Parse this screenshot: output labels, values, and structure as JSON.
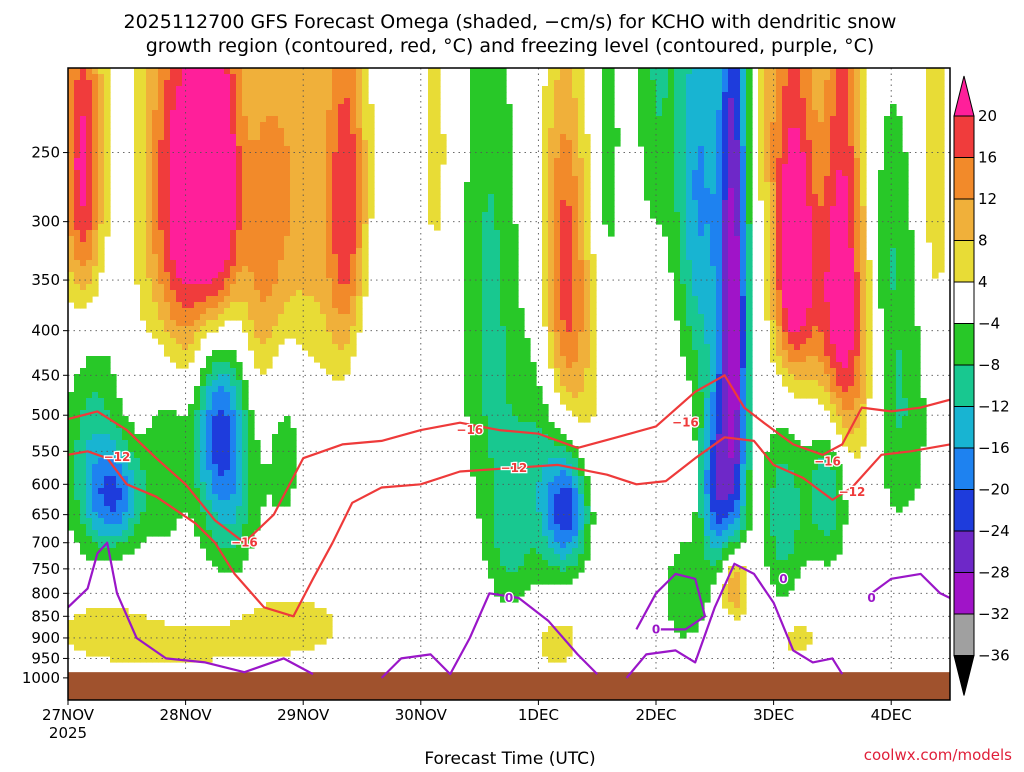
{
  "chart_data": {
    "type": "heatmap",
    "title_line1": "2025112700 GFS Forecast Omega (shaded, −cm/s) for KCHO with dendritic snow",
    "title_line2": "growth region (contoured, red, °C) and freezing level (contoured, purple, °C)",
    "xlabel": "Forecast Time (UTC)",
    "credit": "coolwx.com/models",
    "x_ticks": [
      {
        "label": "27NOV",
        "hour": 0
      },
      {
        "label": "28NOV",
        "hour": 24
      },
      {
        "label": "29NOV",
        "hour": 48
      },
      {
        "label": "30NOV",
        "hour": 72
      },
      {
        "label": "1DEC",
        "hour": 96
      },
      {
        "label": "2DEC",
        "hour": 120
      },
      {
        "label": "3DEC",
        "hour": 144
      },
      {
        "label": "4DEC",
        "hour": 168
      }
    ],
    "x_year": "2025",
    "xlim_hours": [
      0,
      180
    ],
    "y_ticks": [
      {
        "label": "250",
        "p": 250
      },
      {
        "label": "300",
        "p": 300
      },
      {
        "label": "350",
        "p": 350
      },
      {
        "label": "400",
        "p": 400
      },
      {
        "label": "450",
        "p": 450
      },
      {
        "label": "500",
        "p": 500
      },
      {
        "label": "550",
        "p": 550
      },
      {
        "label": "600",
        "p": 600
      },
      {
        "label": "650",
        "p": 650
      },
      {
        "label": "700",
        "p": 700
      },
      {
        "label": "750",
        "p": 750
      },
      {
        "label": "800",
        "p": 800
      },
      {
        "label": "850",
        "p": 850
      },
      {
        "label": "900",
        "p": 900
      },
      {
        "label": "950",
        "p": 950
      },
      {
        "label": "1000",
        "p": 1000
      }
    ],
    "ylim_hpa": [
      200,
      1000
    ],
    "colorbar": {
      "labels": [
        "20",
        "16",
        "12",
        "8",
        "4",
        "−4",
        "−8",
        "−12",
        "−16",
        "−20",
        "−24",
        "−28",
        "−32",
        "−36"
      ],
      "colors": [
        "#ff1f9a",
        "#f03c3c",
        "#f28a2a",
        "#f0b03a",
        "#e8dc36",
        "#ffffff",
        "#28c828",
        "#18c890",
        "#18b4d2",
        "#1e82f0",
        "#1e3cdc",
        "#6e28c8",
        "#a014c8",
        "#a0a0a0",
        "#000000"
      ]
    },
    "omega_blobs": [
      {
        "h": 3,
        "p": 260,
        "sh": 3,
        "sp": 80,
        "v": 22
      },
      {
        "h": 5,
        "p": 550,
        "sh": 4,
        "sp": 120,
        "v": -10
      },
      {
        "h": 10,
        "p": 620,
        "sh": 4,
        "sp": 60,
        "v": -17
      },
      {
        "h": 6,
        "p": 870,
        "sh": 8,
        "sp": 60,
        "v": 5
      },
      {
        "h": 21,
        "p": 280,
        "sh": 5,
        "sp": 110,
        "v": 12
      },
      {
        "h": 26,
        "p": 300,
        "sh": 5,
        "sp": 120,
        "v": 18
      },
      {
        "h": 31,
        "p": 280,
        "sh": 3,
        "sp": 90,
        "v": 21
      },
      {
        "h": 30,
        "p": 480,
        "sh": 4,
        "sp": 100,
        "v": -18
      },
      {
        "h": 33,
        "p": 590,
        "sh": 4,
        "sp": 120,
        "v": -12
      },
      {
        "h": 20,
        "p": 530,
        "sh": 3,
        "sp": 120,
        "v": -8
      },
      {
        "h": 40,
        "p": 330,
        "sh": 4,
        "sp": 120,
        "v": 13
      },
      {
        "h": 44,
        "p": 500,
        "sh": 3,
        "sp": 120,
        "v": -8
      },
      {
        "h": 48,
        "p": 280,
        "sh": 5,
        "sp": 120,
        "v": 10
      },
      {
        "h": 57,
        "p": 300,
        "sh": 3,
        "sp": 110,
        "v": 19
      },
      {
        "h": 60,
        "p": 430,
        "sh": 4,
        "sp": 80,
        "v": -6
      },
      {
        "h": 45,
        "p": 870,
        "sh": 10,
        "sp": 60,
        "v": 6
      },
      {
        "h": 22,
        "p": 920,
        "sh": 12,
        "sp": 50,
        "v": 5
      },
      {
        "h": 75,
        "p": 250,
        "sh": 2,
        "sp": 70,
        "v": 6
      },
      {
        "h": 86,
        "p": 380,
        "sh": 4,
        "sp": 200,
        "v": -9
      },
      {
        "h": 90,
        "p": 700,
        "sh": 3,
        "sp": 90,
        "v": -7
      },
      {
        "h": 101,
        "p": 330,
        "sh": 3,
        "sp": 110,
        "v": 15
      },
      {
        "h": 104,
        "p": 440,
        "sh": 4,
        "sp": 130,
        "v": 8
      },
      {
        "h": 102,
        "p": 640,
        "sh": 3,
        "sp": 70,
        "v": -20
      },
      {
        "h": 97,
        "p": 580,
        "sh": 5,
        "sp": 130,
        "v": -10
      },
      {
        "h": 100,
        "p": 910,
        "sh": 3,
        "sp": 40,
        "v": 8
      },
      {
        "h": 110,
        "p": 250,
        "sh": 2,
        "sp": 90,
        "v": -7
      },
      {
        "h": 120,
        "p": 200,
        "sh": 3,
        "sp": 80,
        "v": -8
      },
      {
        "h": 128,
        "p": 270,
        "sh": 3,
        "sp": 110,
        "v": -14
      },
      {
        "h": 133,
        "p": 380,
        "sh": 3,
        "sp": 200,
        "v": -9
      },
      {
        "h": 136,
        "p": 400,
        "sh": 2,
        "sp": 250,
        "v": -26
      },
      {
        "h": 132,
        "p": 610,
        "sh": 2,
        "sp": 90,
        "v": -17
      },
      {
        "h": 136,
        "p": 780,
        "sh": 2,
        "sp": 60,
        "v": 20
      },
      {
        "h": 126,
        "p": 800,
        "sh": 3,
        "sp": 80,
        "v": -8
      },
      {
        "h": 144,
        "p": 200,
        "sh": 3,
        "sp": 80,
        "v": 8
      },
      {
        "h": 148,
        "p": 360,
        "sh": 3,
        "sp": 70,
        "v": 20
      },
      {
        "h": 149,
        "p": 250,
        "sh": 3,
        "sp": 90,
        "v": 14
      },
      {
        "h": 155,
        "p": 400,
        "sh": 3,
        "sp": 90,
        "v": 10
      },
      {
        "h": 158,
        "p": 250,
        "sh": 3,
        "sp": 140,
        "v": 16
      },
      {
        "h": 160,
        "p": 430,
        "sh": 3,
        "sp": 100,
        "v": 12
      },
      {
        "h": 146,
        "p": 650,
        "sh": 3,
        "sp": 110,
        "v": -11
      },
      {
        "h": 155,
        "p": 600,
        "sh": 3,
        "sp": 90,
        "v": -13
      },
      {
        "h": 149,
        "p": 900,
        "sh": 3,
        "sp": 40,
        "v": 6
      },
      {
        "h": 168,
        "p": 300,
        "sh": 3,
        "sp": 80,
        "v": -6
      },
      {
        "h": 170,
        "p": 500,
        "sh": 4,
        "sp": 120,
        "v": -8
      },
      {
        "h": 177,
        "p": 250,
        "sh": 2,
        "sp": 100,
        "v": 8
      }
    ],
    "dgz_contours": [
      {
        "label": "−12",
        "color": "#ee3a3a",
        "points": [
          [
            0,
            555
          ],
          [
            4,
            550
          ],
          [
            8,
            560
          ],
          [
            12,
            600
          ],
          [
            18,
            620
          ],
          [
            26,
            665
          ],
          [
            30,
            700
          ],
          [
            34,
            760
          ],
          [
            40,
            830
          ],
          [
            46,
            850
          ],
          [
            50,
            770
          ],
          [
            54,
            700
          ],
          [
            58,
            630
          ],
          [
            64,
            605
          ],
          [
            72,
            600
          ],
          [
            80,
            580
          ],
          [
            90,
            575
          ],
          [
            100,
            570
          ],
          [
            110,
            585
          ],
          [
            116,
            600
          ],
          [
            122,
            595
          ],
          [
            128,
            560
          ],
          [
            134,
            530
          ],
          [
            140,
            535
          ],
          [
            144,
            570
          ],
          [
            150,
            590
          ],
          [
            156,
            625
          ],
          [
            160,
            605
          ],
          [
            166,
            555
          ],
          [
            172,
            550
          ],
          [
            180,
            540
          ]
        ],
        "labels": [
          [
            10,
            558
          ],
          [
            91,
            575
          ],
          [
            160,
            612
          ]
        ]
      },
      {
        "label": "−16",
        "color": "#ee3a3a",
        "points": [
          [
            0,
            505
          ],
          [
            6,
            495
          ],
          [
            12,
            520
          ],
          [
            18,
            560
          ],
          [
            24,
            600
          ],
          [
            30,
            660
          ],
          [
            36,
            700
          ],
          [
            42,
            650
          ],
          [
            48,
            560
          ],
          [
            56,
            540
          ],
          [
            64,
            535
          ],
          [
            72,
            520
          ],
          [
            80,
            510
          ],
          [
            88,
            520
          ],
          [
            96,
            525
          ],
          [
            104,
            545
          ],
          [
            112,
            530
          ],
          [
            120,
            515
          ],
          [
            128,
            470
          ],
          [
            134,
            450
          ],
          [
            138,
            490
          ],
          [
            142,
            510
          ],
          [
            148,
            540
          ],
          [
            154,
            555
          ],
          [
            158,
            540
          ],
          [
            162,
            490
          ],
          [
            168,
            495
          ],
          [
            174,
            490
          ],
          [
            180,
            480
          ]
        ],
        "labels": [
          [
            36,
            700
          ],
          [
            82,
            520
          ],
          [
            126,
            510
          ],
          [
            155,
            565
          ]
        ]
      }
    ],
    "freezing_contours": [
      {
        "label": "0",
        "color": "#9a16c8",
        "points": [
          [
            0,
            830
          ],
          [
            4,
            790
          ],
          [
            6,
            720
          ],
          [
            8,
            700
          ],
          [
            10,
            800
          ],
          [
            14,
            900
          ],
          [
            20,
            950
          ],
          [
            28,
            960
          ],
          [
            36,
            985
          ],
          [
            44,
            950
          ],
          [
            50,
            990
          ]
        ]
      },
      {
        "label": "0",
        "color": "#9a16c8",
        "points": [
          [
            64,
            1000
          ],
          [
            68,
            950
          ],
          [
            74,
            940
          ],
          [
            78,
            990
          ],
          [
            82,
            900
          ],
          [
            86,
            800
          ],
          [
            92,
            810
          ],
          [
            98,
            860
          ],
          [
            104,
            940
          ],
          [
            108,
            990
          ]
        ]
      },
      {
        "label": "0",
        "color": "#9a16c8",
        "points": [
          [
            114,
            1000
          ],
          [
            118,
            940
          ],
          [
            124,
            930
          ],
          [
            128,
            960
          ],
          [
            132,
            830
          ],
          [
            136,
            740
          ],
          [
            140,
            760
          ],
          [
            144,
            820
          ],
          [
            148,
            930
          ],
          [
            152,
            960
          ],
          [
            156,
            950
          ],
          [
            158,
            990
          ]
        ]
      },
      {
        "label": "0",
        "color": "#9a16c8",
        "points": [
          [
            116,
            880
          ],
          [
            120,
            800
          ],
          [
            124,
            760
          ],
          [
            128,
            770
          ],
          [
            130,
            850
          ],
          [
            126,
            880
          ],
          [
            120,
            880
          ]
        ]
      },
      {
        "label": "0",
        "color": "#9a16c8",
        "points": [
          [
            164,
            800
          ],
          [
            168,
            770
          ],
          [
            174,
            760
          ],
          [
            178,
            800
          ],
          [
            180,
            810
          ]
        ]
      }
    ],
    "freezing_labels": [
      [
        90,
        810
      ],
      [
        120,
        880
      ],
      [
        146,
        770
      ],
      [
        164,
        810
      ]
    ],
    "terrain": {
      "color": "#a0522d",
      "top_hpa": 985
    }
  }
}
